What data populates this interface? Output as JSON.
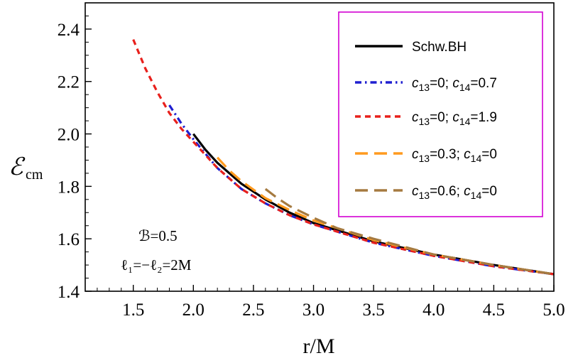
{
  "chart_data": {
    "type": "line",
    "title": "",
    "xlabel": "r/M",
    "ylabel": {
      "main": "ℰ",
      "sub": "cm"
    },
    "xlim": [
      1.1,
      5.0
    ],
    "ylim": [
      1.4,
      2.5
    ],
    "xticks": [
      1.5,
      2.0,
      2.5,
      3.0,
      3.5,
      4.0,
      4.5,
      5.0
    ],
    "xtick_labels": [
      "1.5",
      "2.0",
      "2.5",
      "3.0",
      "3.5",
      "4.0",
      "4.5",
      "5.0"
    ],
    "yticks": [
      1.4,
      1.6,
      1.8,
      2.0,
      2.2,
      2.4
    ],
    "ytick_labels": [
      "1.4",
      "1.6",
      "1.8",
      "2.0",
      "2.2",
      "2.4"
    ],
    "grid": false,
    "legend_position": "top-right",
    "annotations": [
      "ℬ=0.5",
      "ℓ₁=−ℓ₂=2M"
    ],
    "series": [
      {
        "name": "Schw.BH",
        "color": "#000000",
        "dash": "solid",
        "x": [
          2.0,
          2.1,
          2.2,
          2.4,
          2.6,
          2.8,
          3.0,
          3.5,
          4.0,
          4.5,
          5.0
        ],
        "y": [
          2.0,
          1.94,
          1.89,
          1.81,
          1.75,
          1.7,
          1.66,
          1.59,
          1.54,
          1.5,
          1.465
        ]
      },
      {
        "name": "c13=0; c14=0.7",
        "label_parts": [
          "c",
          "13",
          "=0; ",
          "c",
          "14",
          "=0.7"
        ],
        "color": "#1f1fd0",
        "dash": "dashdot",
        "x": [
          1.8,
          1.9,
          2.0,
          2.2,
          2.4,
          2.6,
          2.8,
          3.0,
          3.5,
          4.0,
          4.5,
          5.0
        ],
        "y": [
          2.11,
          2.04,
          1.98,
          1.87,
          1.79,
          1.735,
          1.69,
          1.655,
          1.585,
          1.535,
          1.495,
          1.465
        ]
      },
      {
        "name": "c13=0; c14=1.9",
        "label_parts": [
          "c",
          "13",
          "=0; ",
          "c",
          "14",
          "=1.9"
        ],
        "color": "#e8201c",
        "dash": "dashed",
        "x": [
          1.5,
          1.6,
          1.7,
          1.8,
          1.9,
          2.0,
          2.2,
          2.4,
          2.6,
          2.8,
          3.0,
          3.5,
          4.0,
          4.5,
          5.0
        ],
        "y": [
          2.36,
          2.25,
          2.16,
          2.08,
          2.02,
          1.97,
          1.87,
          1.79,
          1.735,
          1.69,
          1.655,
          1.585,
          1.535,
          1.495,
          1.465
        ]
      },
      {
        "name": "c13=0.3; c14=0",
        "label_parts": [
          "c",
          "13",
          "=0.3; ",
          "c",
          "14",
          "=0"
        ],
        "color": "#ff9a1f",
        "dash": "longdash",
        "x": [
          2.2,
          2.3,
          2.4,
          2.6,
          2.8,
          3.0,
          3.5,
          4.0,
          4.5,
          5.0
        ],
        "y": [
          1.91,
          1.86,
          1.82,
          1.755,
          1.71,
          1.67,
          1.595,
          1.54,
          1.5,
          1.465
        ]
      },
      {
        "name": "c13=0.6; c14=0",
        "label_parts": [
          "c",
          "13",
          "=0.6; ",
          "c",
          "14",
          "=0"
        ],
        "color": "#a57a40",
        "dash": "longdash",
        "x": [
          2.6,
          2.7,
          2.8,
          3.0,
          3.2,
          3.5,
          4.0,
          4.5,
          5.0
        ],
        "y": [
          1.79,
          1.755,
          1.725,
          1.68,
          1.64,
          1.6,
          1.54,
          1.5,
          1.465
        ]
      }
    ]
  }
}
